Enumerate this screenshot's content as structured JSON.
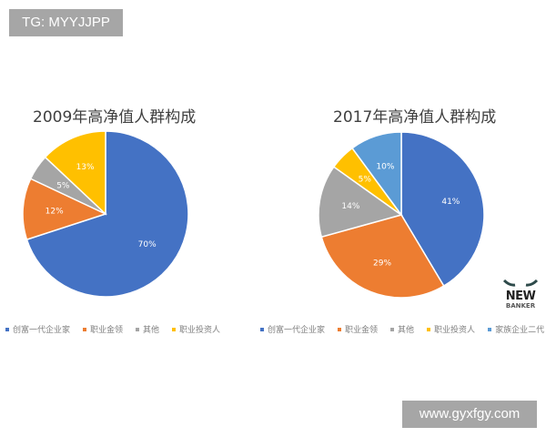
{
  "watermark_top": "TG: MYYJJPP",
  "watermark_bottom": "www.gyxfgy.com",
  "logo": {
    "line1": "NEW",
    "line2": "BANKER"
  },
  "chart_data": [
    {
      "type": "pie",
      "title": "2009年高净值人群构成",
      "categories": [
        "创富一代企业家",
        "职业金领",
        "其他",
        "职业投资人"
      ],
      "values": [
        70,
        12,
        5,
        13
      ],
      "labels": [
        "70%",
        "12%",
        "5%",
        "13%"
      ],
      "colors": [
        "#4472c4",
        "#ed7d31",
        "#a5a5a5",
        "#ffc000"
      ],
      "legend_position": "bottom"
    },
    {
      "type": "pie",
      "title": "2017年高净值人群构成",
      "categories": [
        "创富一代企业家",
        "职业金领",
        "其他",
        "职业投资人",
        "家族企业二代"
      ],
      "values": [
        41,
        29,
        14,
        5,
        10
      ],
      "labels": [
        "41%",
        "29%",
        "14%",
        "5%",
        "10%"
      ],
      "colors": [
        "#4472c4",
        "#ed7d31",
        "#a5a5a5",
        "#ffc000",
        "#5b9bd5"
      ],
      "legend_position": "bottom"
    }
  ]
}
